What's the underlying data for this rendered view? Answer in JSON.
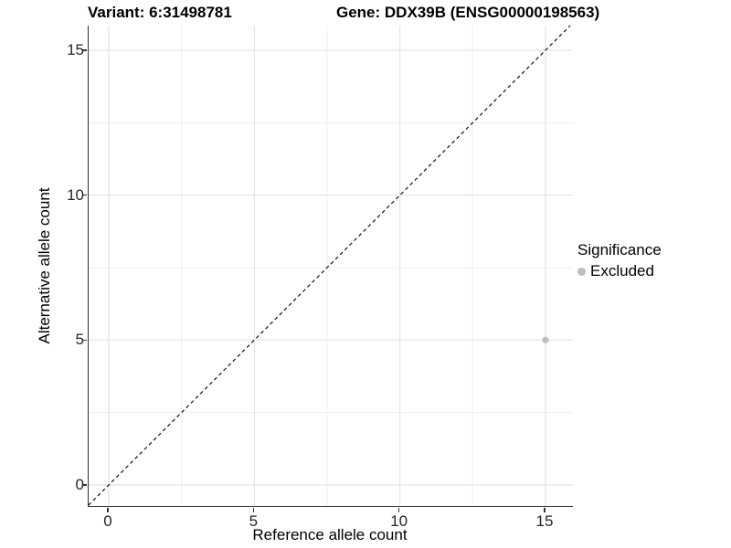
{
  "titles": {
    "variant": "Variant: 6:31498781",
    "gene": "Gene: DDX39B (ENSG00000198563)"
  },
  "axes": {
    "x_label": "Reference allele count",
    "y_label": "Alternative allele count"
  },
  "legend": {
    "title": "Significance",
    "items": [
      {
        "label": "Excluded",
        "color": "#bebebe"
      }
    ]
  },
  "colors": {
    "point": "#bebebe",
    "axis_line": "#333333",
    "grid_major": "#e3e3e3",
    "grid_minor": "#efefef",
    "reference_line": "#111111",
    "tick_text": "#262626"
  },
  "chart_data": {
    "type": "scatter",
    "title": "Variant: 6:31498781    Gene: DDX39B (ENSG00000198563)",
    "xlabel": "Reference allele count",
    "ylabel": "Alternative allele count",
    "xlim": [
      -0.7,
      15.94
    ],
    "ylim": [
      -0.73,
      15.85
    ],
    "x_ticks": [
      0,
      5,
      10,
      15
    ],
    "y_ticks": [
      0,
      5,
      10,
      15
    ],
    "x_minor_ticks": [
      2.5,
      7.5,
      12.5
    ],
    "y_minor_ticks": [
      2.5,
      7.5,
      12.5
    ],
    "grid": true,
    "legend_position": "right",
    "series": [
      {
        "name": "Excluded",
        "color": "#bebebe",
        "points": [
          {
            "x": 15,
            "y": 5
          }
        ]
      }
    ],
    "reference_line": {
      "kind": "identity",
      "equation": "y = x",
      "style": "dashed",
      "color": "#111111"
    }
  }
}
